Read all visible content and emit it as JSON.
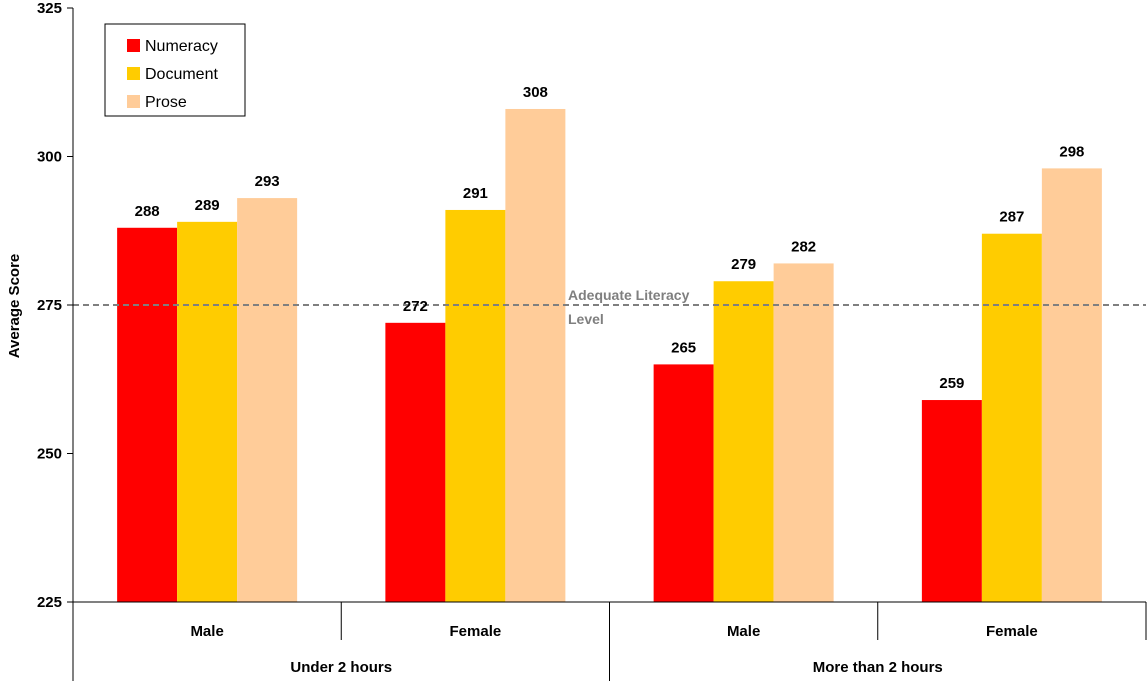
{
  "chart_data": {
    "type": "bar",
    "ylabel": "Average Score",
    "ylim": [
      225,
      325
    ],
    "yticks": [
      225,
      250,
      275,
      300,
      325
    ],
    "groups": [
      {
        "label": "Under 2 hours",
        "categories": [
          "Male",
          "Female"
        ]
      },
      {
        "label": "More than 2 hours",
        "categories": [
          "Male",
          "Female"
        ]
      }
    ],
    "categories": [
      "Male",
      "Female",
      "Male",
      "Female"
    ],
    "series": [
      {
        "name": "Numeracy",
        "color": "#ff0000",
        "values": [
          288,
          272,
          265,
          259
        ]
      },
      {
        "name": "Document",
        "color": "#ffcc00",
        "values": [
          289,
          291,
          279,
          287
        ]
      },
      {
        "name": "Prose",
        "color": "#ffcc99",
        "values": [
          293,
          308,
          282,
          298
        ]
      }
    ],
    "reference_line": {
      "value": 275,
      "label_line1": "Adequate Literacy",
      "label_line2": "Level",
      "color": "#7f7f7f",
      "style": "dashed"
    },
    "legend": {
      "placement": "top-left"
    },
    "grid": false
  }
}
